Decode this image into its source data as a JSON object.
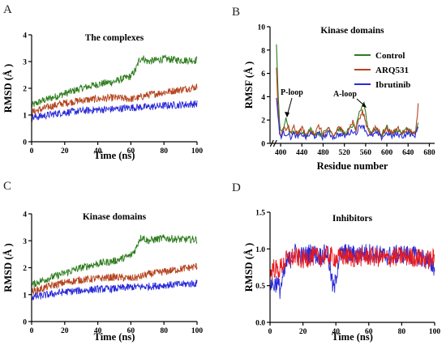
{
  "chart_data": [
    {
      "panel": "A",
      "type": "line",
      "title": "The complexes",
      "xlabel": "Time (ns)",
      "ylabel": "RMSD (Å )",
      "xlim": [
        0,
        100
      ],
      "ylim": [
        0,
        4
      ],
      "xticks": [
        "0",
        "20",
        "40",
        "60",
        "80",
        "100"
      ],
      "yticks": [
        "0",
        "1",
        "2",
        "3",
        "4"
      ],
      "series": [
        {
          "color": "#2e7d1e",
          "x": [
            0,
            5,
            10,
            20,
            30,
            40,
            50,
            55,
            60,
            63,
            65,
            67,
            70,
            80,
            90,
            100
          ],
          "y": [
            1.35,
            1.5,
            1.6,
            1.8,
            2.0,
            2.15,
            2.25,
            2.35,
            2.45,
            2.7,
            3.05,
            3.15,
            3.0,
            3.1,
            3.05,
            3.05
          ]
        },
        {
          "color": "#b5441e",
          "x": [
            0,
            5,
            10,
            20,
            30,
            40,
            50,
            60,
            65,
            70,
            80,
            90,
            100
          ],
          "y": [
            1.1,
            1.2,
            1.3,
            1.45,
            1.55,
            1.6,
            1.65,
            1.6,
            1.65,
            1.75,
            1.85,
            1.95,
            2.05
          ]
        },
        {
          "color": "#2a2ad8",
          "x": [
            0,
            5,
            10,
            20,
            30,
            40,
            50,
            60,
            70,
            80,
            90,
            100
          ],
          "y": [
            0.9,
            0.95,
            1.0,
            1.1,
            1.15,
            1.2,
            1.22,
            1.28,
            1.3,
            1.35,
            1.38,
            1.42
          ]
        }
      ]
    },
    {
      "panel": "B",
      "type": "line",
      "title": "Kinase domains",
      "xlabel": "Residue number",
      "ylabel": "RMSF (Å )",
      "xlim": [
        380,
        690
      ],
      "ylim": [
        0,
        10
      ],
      "xticks": [
        "400",
        "440",
        "480",
        "520",
        "560",
        "600",
        "640",
        "680"
      ],
      "yticks": [
        "0",
        "2",
        "4",
        "6",
        "8",
        "10"
      ],
      "legend": [
        "Control",
        "ARQ531",
        "Ibrutinib"
      ],
      "annotations": [
        "P-loop",
        "A-loop"
      ],
      "series": [
        {
          "name": "Control",
          "color": "#2e7d1e",
          "x": [
            392,
            395,
            398,
            402,
            406,
            410,
            414,
            418,
            425,
            432,
            440,
            448,
            456,
            464,
            472,
            480,
            490,
            500,
            510,
            520,
            530,
            536,
            542,
            546,
            550,
            554,
            557,
            560,
            564,
            570,
            580,
            590,
            600,
            610,
            620,
            630,
            640,
            650,
            655,
            659
          ],
          "y": [
            8.6,
            4.5,
            1.5,
            1.0,
            1.3,
            2.1,
            1.6,
            0.7,
            1.0,
            0.8,
            1.1,
            0.7,
            1.2,
            0.8,
            0.9,
            0.8,
            1.4,
            0.7,
            1.3,
            0.8,
            1.2,
            1.6,
            1.2,
            2.4,
            2.6,
            3.1,
            3.6,
            2.5,
            1.5,
            0.9,
            1.3,
            0.7,
            1.4,
            0.8,
            1.2,
            0.9,
            1.3,
            0.8,
            1.0,
            1.6
          ]
        },
        {
          "name": "ARQ531",
          "color": "#b5441e",
          "x": [
            392,
            395,
            398,
            402,
            406,
            410,
            414,
            418,
            425,
            432,
            440,
            448,
            456,
            464,
            472,
            480,
            490,
            500,
            510,
            520,
            530,
            536,
            542,
            546,
            550,
            554,
            557,
            560,
            564,
            570,
            580,
            590,
            600,
            610,
            620,
            630,
            640,
            650,
            655,
            659
          ],
          "y": [
            6.4,
            3.0,
            1.0,
            0.7,
            1.4,
            1.1,
            1.5,
            0.8,
            1.4,
            0.7,
            1.4,
            0.6,
            1.2,
            0.8,
            1.5,
            0.7,
            1.2,
            0.6,
            1.5,
            0.7,
            1.4,
            1.9,
            1.1,
            2.0,
            2.2,
            2.7,
            2.4,
            1.8,
            1.3,
            0.8,
            1.4,
            0.7,
            1.3,
            0.8,
            1.4,
            0.9,
            1.2,
            0.8,
            1.1,
            3.4
          ]
        },
        {
          "name": "Ibrutinib",
          "color": "#2a2ad8",
          "x": [
            392,
            395,
            398,
            402,
            406,
            410,
            414,
            418,
            425,
            432,
            440,
            448,
            456,
            464,
            472,
            480,
            490,
            500,
            510,
            520,
            530,
            536,
            542,
            546,
            550,
            554,
            557,
            560,
            564,
            570,
            580,
            590,
            600,
            610,
            620,
            630,
            640,
            650,
            655,
            659
          ],
          "y": [
            4.0,
            2.4,
            0.8,
            0.6,
            0.9,
            0.8,
            0.9,
            0.5,
            0.8,
            0.5,
            0.8,
            0.5,
            0.8,
            0.6,
            0.8,
            0.5,
            0.9,
            0.5,
            0.8,
            0.6,
            0.9,
            1.1,
            0.8,
            1.3,
            1.5,
            1.6,
            1.4,
            1.1,
            0.8,
            0.6,
            0.9,
            0.5,
            0.9,
            0.6,
            0.8,
            0.6,
            0.9,
            0.6,
            0.8,
            1.6
          ]
        }
      ]
    },
    {
      "panel": "C",
      "type": "line",
      "title": "Kinase domains",
      "xlabel": "Time (ns)",
      "ylabel": "RMSD (Å )",
      "xlim": [
        0,
        100
      ],
      "ylim": [
        0,
        4
      ],
      "xticks": [
        "0",
        "20",
        "40",
        "60",
        "80",
        "100"
      ],
      "yticks": [
        "0",
        "1",
        "2",
        "3",
        "4"
      ],
      "series": [
        {
          "color": "#2e7d1e",
          "x": [
            0,
            5,
            10,
            20,
            30,
            40,
            50,
            55,
            60,
            63,
            65,
            67,
            70,
            80,
            90,
            100
          ],
          "y": [
            1.35,
            1.5,
            1.6,
            1.8,
            2.0,
            2.15,
            2.25,
            2.35,
            2.45,
            2.7,
            3.05,
            3.15,
            3.0,
            3.1,
            3.05,
            3.05
          ]
        },
        {
          "color": "#b5441e",
          "x": [
            0,
            5,
            10,
            20,
            30,
            40,
            50,
            60,
            65,
            70,
            80,
            90,
            100
          ],
          "y": [
            1.1,
            1.2,
            1.3,
            1.45,
            1.55,
            1.6,
            1.65,
            1.6,
            1.65,
            1.75,
            1.85,
            1.95,
            2.05
          ]
        },
        {
          "color": "#2a2ad8",
          "x": [
            0,
            5,
            10,
            20,
            30,
            40,
            50,
            60,
            70,
            80,
            90,
            100
          ],
          "y": [
            0.9,
            0.95,
            1.0,
            1.1,
            1.15,
            1.2,
            1.22,
            1.28,
            1.3,
            1.35,
            1.38,
            1.42
          ]
        }
      ]
    },
    {
      "panel": "D",
      "type": "line",
      "title": "Inhibitors",
      "xlabel": "Time (ns)",
      "ylabel": "RMSD (Å )",
      "xlim": [
        0,
        100
      ],
      "ylim": [
        0,
        1.5
      ],
      "xticks": [
        "0",
        "20",
        "40",
        "60",
        "80",
        "100"
      ],
      "yticks": [
        "0.0",
        "0.5",
        "1.0",
        "1.5"
      ],
      "series": [
        {
          "color": "#2a2ad8",
          "x": [
            0,
            2,
            4,
            6,
            8,
            10,
            12,
            15,
            20,
            25,
            30,
            35,
            38,
            39,
            40,
            42,
            45,
            50,
            60,
            70,
            80,
            90,
            95,
            100
          ],
          "y": [
            0.55,
            0.5,
            0.55,
            0.45,
            0.6,
            0.8,
            0.85,
            0.95,
            0.9,
            0.95,
            0.9,
            0.95,
            0.5,
            0.45,
            0.6,
            0.9,
            0.95,
            0.92,
            0.95,
            0.9,
            0.93,
            0.9,
            0.85,
            0.75
          ]
        },
        {
          "color": "#e8191c",
          "x": [
            0,
            2,
            5,
            8,
            10,
            15,
            20,
            25,
            30,
            35,
            40,
            45,
            50,
            60,
            70,
            80,
            90,
            95,
            100
          ],
          "y": [
            0.65,
            0.75,
            0.7,
            0.8,
            0.85,
            0.9,
            0.85,
            0.9,
            0.88,
            0.92,
            0.87,
            0.9,
            0.88,
            0.9,
            0.87,
            0.9,
            0.88,
            0.85,
            0.87
          ]
        }
      ]
    }
  ]
}
